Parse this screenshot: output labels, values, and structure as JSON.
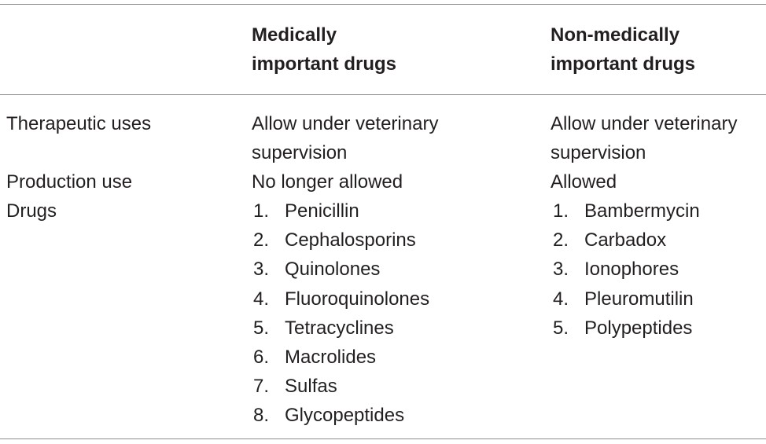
{
  "table": {
    "headers": {
      "col2": "Medically\nimportant drugs",
      "col3": "Non-medically\nimportant drugs"
    },
    "rows": [
      {
        "label": "Therapeutic uses",
        "medical": "Allow under veterinary\nsupervision",
        "nonmedical": "Allow under veterinary\nsupervision"
      },
      {
        "label": "Production use",
        "medical": "No longer allowed",
        "nonmedical": "Allowed"
      },
      {
        "label": "Drugs"
      }
    ],
    "medical_drugs": [
      {
        "num": "1.",
        "name": "Penicillin"
      },
      {
        "num": "2.",
        "name": "Cephalosporins"
      },
      {
        "num": "3.",
        "name": "Quinolones"
      },
      {
        "num": "4.",
        "name": "Fluoroquinolones"
      },
      {
        "num": "5.",
        "name": "Tetracyclines"
      },
      {
        "num": "6.",
        "name": "Macrolides"
      },
      {
        "num": "7.",
        "name": "Sulfas"
      },
      {
        "num": "8.",
        "name": "Glycopeptides"
      }
    ],
    "nonmedical_drugs": [
      {
        "num": "1.",
        "name": "Bambermycin"
      },
      {
        "num": "2.",
        "name": "Carbadox"
      },
      {
        "num": "3.",
        "name": "Ionophores"
      },
      {
        "num": "4.",
        "name": "Pleuromutilin"
      },
      {
        "num": "5.",
        "name": "Polypeptides"
      }
    ]
  }
}
